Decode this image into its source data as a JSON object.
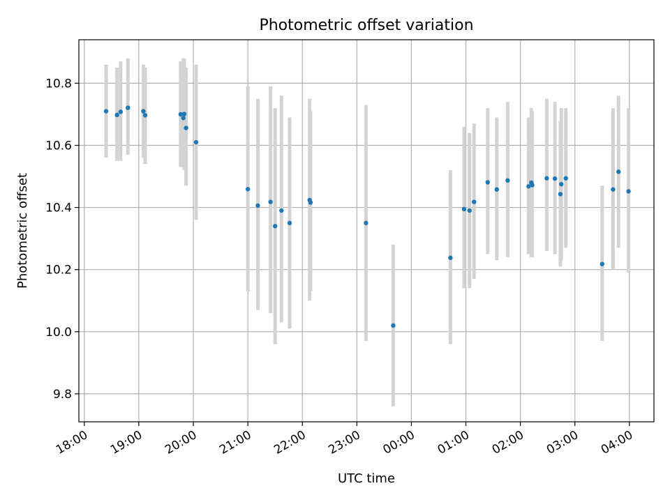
{
  "chart_data": {
    "type": "scatter",
    "title": "Photometric offset variation",
    "xlabel": "UTC time",
    "ylabel": "Photometric offset",
    "xlim": [
      "17:54",
      "04:27"
    ],
    "ylim": [
      9.71,
      10.94
    ],
    "grid": true,
    "x_tick_labels": [
      "18:00",
      "19:00",
      "20:00",
      "21:00",
      "22:00",
      "23:00",
      "00:00",
      "01:00",
      "02:00",
      "03:00",
      "04:00"
    ],
    "y_tick_values": [
      9.8,
      10.0,
      10.2,
      10.4,
      10.6,
      10.8
    ],
    "y_tick_labels": [
      "9.8",
      "10.0",
      "10.2",
      "10.4",
      "10.6",
      "10.8"
    ],
    "colors": {
      "point": "#1f77b4",
      "errorbar": "#d3d3d3"
    },
    "series": [
      {
        "points": [
          {
            "x": "18:24",
            "y": 10.71,
            "lo": 10.56,
            "hi": 10.86
          },
          {
            "x": "18:36",
            "y": 10.698,
            "lo": 10.55,
            "hi": 10.85
          },
          {
            "x": "18:40",
            "y": 10.708,
            "lo": 10.55,
            "hi": 10.87
          },
          {
            "x": "18:48",
            "y": 10.721,
            "lo": 10.57,
            "hi": 10.88
          },
          {
            "x": "19:05",
            "y": 10.71,
            "lo": 10.56,
            "hi": 10.86
          },
          {
            "x": "19:07",
            "y": 10.697,
            "lo": 10.54,
            "hi": 10.85
          },
          {
            "x": "19:46",
            "y": 10.7,
            "lo": 10.53,
            "hi": 10.87
          },
          {
            "x": "19:49",
            "y": 10.688,
            "lo": 10.53,
            "hi": 10.88
          },
          {
            "x": "19:50",
            "y": 10.701,
            "lo": 10.52,
            "hi": 10.88
          },
          {
            "x": "19:52",
            "y": 10.656,
            "lo": 10.47,
            "hi": 10.85
          },
          {
            "x": "20:03",
            "y": 10.61,
            "lo": 10.36,
            "hi": 10.86
          },
          {
            "x": "21:00",
            "y": 10.459,
            "lo": 10.13,
            "hi": 10.79
          },
          {
            "x": "21:11",
            "y": 10.406,
            "lo": 10.07,
            "hi": 10.75
          },
          {
            "x": "21:25",
            "y": 10.418,
            "lo": 10.06,
            "hi": 10.79
          },
          {
            "x": "21:30",
            "y": 10.34,
            "lo": 9.96,
            "hi": 10.72
          },
          {
            "x": "21:37",
            "y": 10.39,
            "lo": 10.03,
            "hi": 10.76
          },
          {
            "x": "21:46",
            "y": 10.35,
            "lo": 10.01,
            "hi": 10.69
          },
          {
            "x": "22:08",
            "y": 10.424,
            "lo": 10.1,
            "hi": 10.75
          },
          {
            "x": "22:09",
            "y": 10.416,
            "lo": 10.13,
            "hi": 10.71
          },
          {
            "x": "23:10",
            "y": 10.35,
            "lo": 9.97,
            "hi": 10.73
          },
          {
            "x": "23:40",
            "y": 10.02,
            "lo": 9.76,
            "hi": 10.28
          },
          {
            "x": "00:43",
            "y": 10.238,
            "lo": 9.96,
            "hi": 10.52
          },
          {
            "x": "00:58",
            "y": 10.395,
            "lo": 10.14,
            "hi": 10.66
          },
          {
            "x": "01:04",
            "y": 10.39,
            "lo": 10.14,
            "hi": 10.64
          },
          {
            "x": "01:09",
            "y": 10.418,
            "lo": 10.17,
            "hi": 10.67
          },
          {
            "x": "01:24",
            "y": 10.481,
            "lo": 10.25,
            "hi": 10.72
          },
          {
            "x": "01:34",
            "y": 10.458,
            "lo": 10.23,
            "hi": 10.69
          },
          {
            "x": "01:46",
            "y": 10.487,
            "lo": 10.24,
            "hi": 10.74
          },
          {
            "x": "02:09",
            "y": 10.468,
            "lo": 10.25,
            "hi": 10.69
          },
          {
            "x": "02:12",
            "y": 10.48,
            "lo": 10.24,
            "hi": 10.72
          },
          {
            "x": "02:13",
            "y": 10.472,
            "lo": 10.24,
            "hi": 10.71
          },
          {
            "x": "02:29",
            "y": 10.494,
            "lo": 10.26,
            "hi": 10.75
          },
          {
            "x": "02:38",
            "y": 10.493,
            "lo": 10.25,
            "hi": 10.74
          },
          {
            "x": "02:44",
            "y": 10.443,
            "lo": 10.21,
            "hi": 10.68
          },
          {
            "x": "02:45",
            "y": 10.475,
            "lo": 10.23,
            "hi": 10.72
          },
          {
            "x": "02:50",
            "y": 10.494,
            "lo": 10.27,
            "hi": 10.72
          },
          {
            "x": "03:30",
            "y": 10.218,
            "lo": 9.97,
            "hi": 10.47
          },
          {
            "x": "03:42",
            "y": 10.458,
            "lo": 10.2,
            "hi": 10.72
          },
          {
            "x": "03:48",
            "y": 10.515,
            "lo": 10.27,
            "hi": 10.76
          },
          {
            "x": "03:59",
            "y": 10.452,
            "lo": 10.19,
            "hi": 10.72
          }
        ]
      }
    ]
  }
}
